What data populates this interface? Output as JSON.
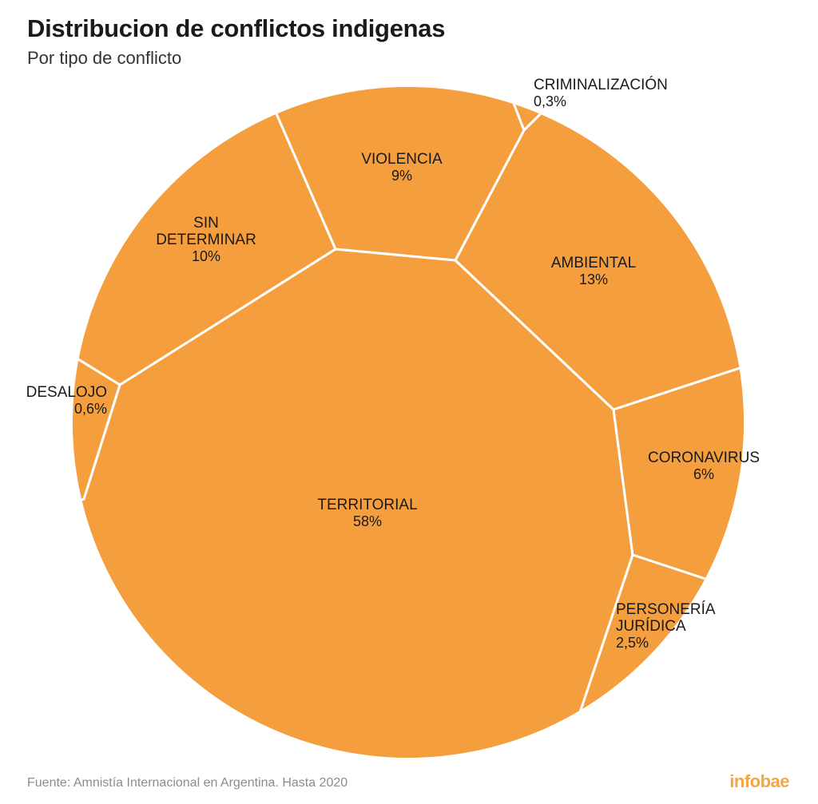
{
  "header": {
    "title": "Distribucion de conflictos indigenas",
    "subtitle": "Por tipo de conflicto"
  },
  "footer": {
    "source": "Fuente: Amnistía Internacional en Argentina. Hasta 2020",
    "brand": "infobae"
  },
  "colors": {
    "cell": "#f59e3e",
    "border": "#ffffff",
    "brand": "#f4a544"
  },
  "chart_data": {
    "type": "voronoi-treemap",
    "title": "Distribucion de conflictos indigenas",
    "subtitle": "Por tipo de conflicto",
    "unit": "%",
    "categories": [
      {
        "name": "TERRITORIAL",
        "label_lines": [
          "TERRITORIAL"
        ],
        "value": 58,
        "value_label": "58%"
      },
      {
        "name": "AMBIENTAL",
        "label_lines": [
          "AMBIENTAL"
        ],
        "value": 13,
        "value_label": "13%"
      },
      {
        "name": "SIN DETERMINAR",
        "label_lines": [
          "SIN",
          "DETERMINAR"
        ],
        "value": 10,
        "value_label": "10%"
      },
      {
        "name": "VIOLENCIA",
        "label_lines": [
          "VIOLENCIA"
        ],
        "value": 9,
        "value_label": "9%"
      },
      {
        "name": "CORONAVIRUS",
        "label_lines": [
          "CORONAVIRUS"
        ],
        "value": 6,
        "value_label": "6%"
      },
      {
        "name": "PERSONERÍA JURÍDICA",
        "label_lines": [
          "PERSONERÍA",
          "JURÍDICA"
        ],
        "value": 2.5,
        "value_label": "2,5%"
      },
      {
        "name": "DESALOJO",
        "label_lines": [
          "DESALOJO"
        ],
        "value": 0.6,
        "value_label": "0,6%"
      },
      {
        "name": "CRIMINALIZACIÓN",
        "label_lines": [
          "CRIMINALIZACIÓN"
        ],
        "value": 0.3,
        "value_label": "0,3%"
      }
    ]
  }
}
